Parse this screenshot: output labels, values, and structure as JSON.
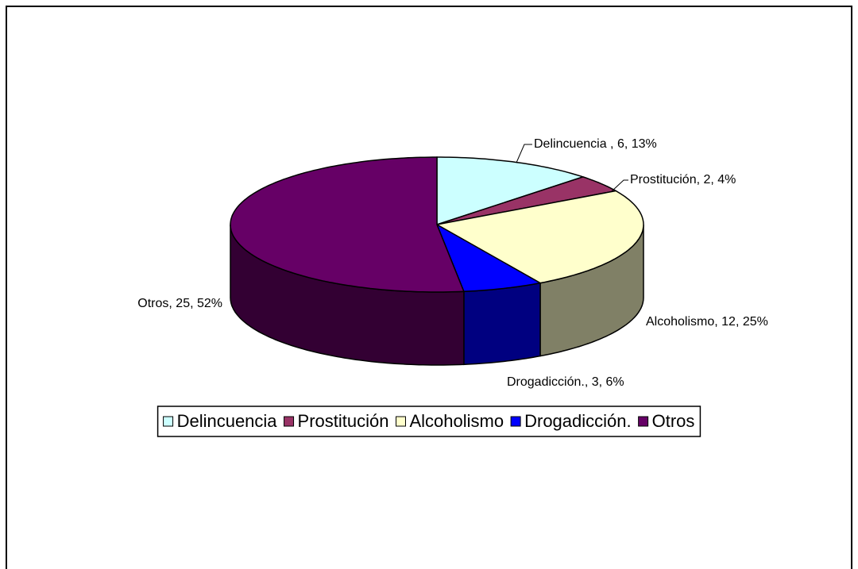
{
  "chart_data": {
    "type": "pie3d",
    "categories": [
      "Delincuencia",
      "Prostitución",
      "Alcoholismo",
      "Drogadicción.",
      "Otros"
    ],
    "values": [
      6,
      2,
      12,
      3,
      25
    ],
    "value_labels": [
      "Delincuencia , 6, 13%",
      "Prostitución, 2, 4%",
      "Alcoholismo, 12, 25%",
      "Drogadicción., 3, 6%",
      "Otros, 25, 52%"
    ],
    "colors": [
      "#ccffff",
      "#993366",
      "#ffffcc",
      "#0000ff",
      "#660066"
    ],
    "side_colors": [
      "#7f9999",
      "#5c1f3d",
      "#808066",
      "#000080",
      "#330033"
    ],
    "legend": "bottom"
  }
}
